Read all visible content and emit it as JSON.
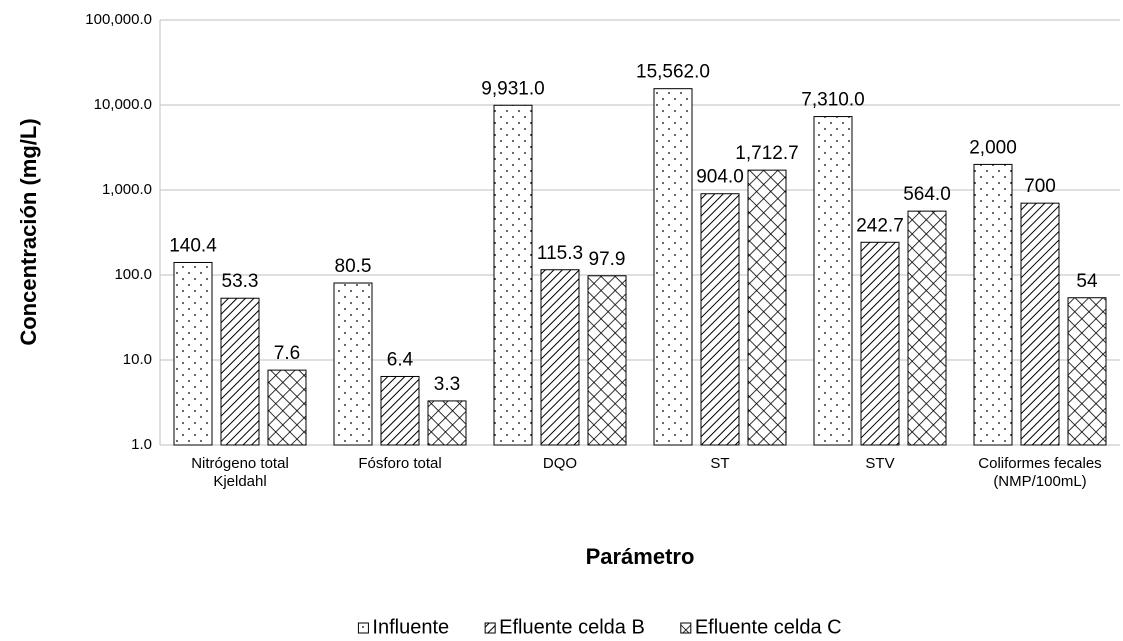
{
  "chart_data": {
    "type": "bar",
    "y_label": "Concentración (mg/L)",
    "x_label": "Parámetro",
    "categories": [
      "Nitrógeno total Kjeldahl",
      "Fósforo total",
      "DQO",
      "ST",
      "STV",
      "Coliformes fecales (NMP/100mL)"
    ],
    "series": [
      {
        "name": "Influente",
        "color": "#000000",
        "pattern": "dots",
        "values": [
          140.4,
          80.5,
          9931.0,
          15562.0,
          7310.0,
          2000
        ],
        "value_labels": [
          "140.4",
          "80.5",
          "9,931.0",
          "15,562.0",
          "7,310.0",
          "2,000"
        ]
      },
      {
        "name": "Efluente celda B",
        "color": "#000000",
        "pattern": "diagonal",
        "values": [
          53.3,
          6.4,
          115.3,
          904.0,
          242.7,
          700
        ],
        "value_labels": [
          "53.3",
          "6.4",
          "115.3",
          "904.0",
          "242.7",
          "700"
        ]
      },
      {
        "name": "Efluente celda C",
        "color": "#000000",
        "pattern": "crosshatch",
        "values": [
          7.6,
          3.3,
          97.9,
          1712.7,
          564.0,
          54
        ],
        "value_labels": [
          "7.6",
          "3.3",
          "97.9",
          "1,712.7",
          "564.0",
          "54"
        ]
      }
    ],
    "log_y": true,
    "ylim": [
      1,
      100000
    ],
    "yticks": [
      {
        "value": 1,
        "label": "1.0"
      },
      {
        "value": 10,
        "label": "10.0"
      },
      {
        "value": 100,
        "label": "100.0"
      },
      {
        "value": 1000,
        "label": "1,000.0"
      },
      {
        "value": 10000,
        "label": "10,000.0"
      },
      {
        "value": 100000,
        "label": "100,000.0"
      }
    ],
    "grid": true,
    "legend": "bottom"
  }
}
